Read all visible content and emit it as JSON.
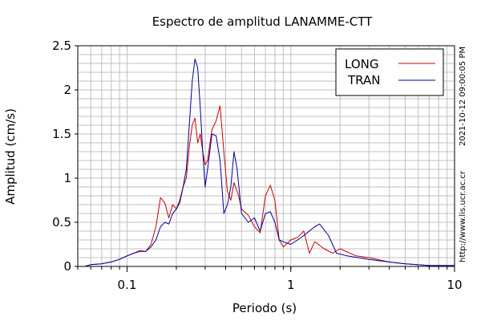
{
  "chart_data": {
    "type": "line",
    "title": "Espectro de amplitud LANAMME-CTT",
    "xlabel": "Periodo (s)",
    "ylabel": "Amplitud (cm/s)",
    "xscale": "log",
    "xlim": [
      0.05,
      10
    ],
    "ylim": [
      0,
      2.5
    ],
    "xticks": [
      {
        "value": 0.1,
        "label": "0.1"
      },
      {
        "value": 1,
        "label": "1"
      },
      {
        "value": 10,
        "label": "10"
      }
    ],
    "yticks": [
      {
        "value": 0,
        "label": "0"
      },
      {
        "value": 0.5,
        "label": "0.5"
      },
      {
        "value": 1,
        "label": "1"
      },
      {
        "value": 1.5,
        "label": "1.5"
      },
      {
        "value": 2,
        "label": "2"
      },
      {
        "value": 2.5,
        "label": "2.5"
      }
    ],
    "grid": true,
    "legend_position": "top-right",
    "side_annotations": [
      "2021-10-12 09:00:05 PM",
      "http://www.lis.ucr.ac.cr"
    ],
    "series": [
      {
        "name": "LONG",
        "color": "#cc0000",
        "points": [
          [
            0.055,
            0
          ],
          [
            0.06,
            0.02
          ],
          [
            0.07,
            0.03
          ],
          [
            0.08,
            0.05
          ],
          [
            0.09,
            0.08
          ],
          [
            0.1,
            0.12
          ],
          [
            0.11,
            0.15
          ],
          [
            0.12,
            0.18
          ],
          [
            0.13,
            0.17
          ],
          [
            0.14,
            0.25
          ],
          [
            0.15,
            0.45
          ],
          [
            0.16,
            0.78
          ],
          [
            0.17,
            0.72
          ],
          [
            0.18,
            0.55
          ],
          [
            0.19,
            0.7
          ],
          [
            0.2,
            0.65
          ],
          [
            0.21,
            0.72
          ],
          [
            0.22,
            0.9
          ],
          [
            0.23,
            1.0
          ],
          [
            0.24,
            1.35
          ],
          [
            0.25,
            1.6
          ],
          [
            0.26,
            1.68
          ],
          [
            0.27,
            1.4
          ],
          [
            0.28,
            1.5
          ],
          [
            0.29,
            1.3
          ],
          [
            0.3,
            1.15
          ],
          [
            0.31,
            1.2
          ],
          [
            0.33,
            1.55
          ],
          [
            0.35,
            1.65
          ],
          [
            0.37,
            1.82
          ],
          [
            0.39,
            1.3
          ],
          [
            0.41,
            0.85
          ],
          [
            0.43,
            0.75
          ],
          [
            0.45,
            0.95
          ],
          [
            0.48,
            0.8
          ],
          [
            0.5,
            0.65
          ],
          [
            0.55,
            0.58
          ],
          [
            0.6,
            0.45
          ],
          [
            0.65,
            0.38
          ],
          [
            0.7,
            0.8
          ],
          [
            0.75,
            0.92
          ],
          [
            0.8,
            0.75
          ],
          [
            0.85,
            0.3
          ],
          [
            0.9,
            0.22
          ],
          [
            1.0,
            0.3
          ],
          [
            1.1,
            0.33
          ],
          [
            1.2,
            0.4
          ],
          [
            1.3,
            0.15
          ],
          [
            1.4,
            0.28
          ],
          [
            1.6,
            0.2
          ],
          [
            1.8,
            0.15
          ],
          [
            2.0,
            0.2
          ],
          [
            2.5,
            0.12
          ],
          [
            3.0,
            0.1
          ],
          [
            4.0,
            0.05
          ],
          [
            5.0,
            0.03
          ],
          [
            7.0,
            0.01
          ],
          [
            10.0,
            0.01
          ]
        ]
      },
      {
        "name": "TRAN",
        "color": "#000099",
        "points": [
          [
            0.055,
            0
          ],
          [
            0.06,
            0.02
          ],
          [
            0.07,
            0.03
          ],
          [
            0.08,
            0.05
          ],
          [
            0.09,
            0.08
          ],
          [
            0.1,
            0.12
          ],
          [
            0.11,
            0.15
          ],
          [
            0.12,
            0.17
          ],
          [
            0.13,
            0.17
          ],
          [
            0.14,
            0.22
          ],
          [
            0.15,
            0.3
          ],
          [
            0.16,
            0.45
          ],
          [
            0.17,
            0.5
          ],
          [
            0.18,
            0.48
          ],
          [
            0.19,
            0.6
          ],
          [
            0.2,
            0.65
          ],
          [
            0.21,
            0.75
          ],
          [
            0.22,
            0.9
          ],
          [
            0.23,
            1.1
          ],
          [
            0.24,
            1.6
          ],
          [
            0.25,
            2.1
          ],
          [
            0.26,
            2.35
          ],
          [
            0.27,
            2.25
          ],
          [
            0.28,
            1.8
          ],
          [
            0.29,
            1.3
          ],
          [
            0.3,
            0.9
          ],
          [
            0.31,
            1.1
          ],
          [
            0.33,
            1.5
          ],
          [
            0.35,
            1.48
          ],
          [
            0.37,
            1.2
          ],
          [
            0.39,
            0.6
          ],
          [
            0.41,
            0.7
          ],
          [
            0.43,
            0.9
          ],
          [
            0.45,
            1.3
          ],
          [
            0.47,
            1.1
          ],
          [
            0.5,
            0.6
          ],
          [
            0.55,
            0.5
          ],
          [
            0.6,
            0.55
          ],
          [
            0.65,
            0.4
          ],
          [
            0.7,
            0.6
          ],
          [
            0.75,
            0.62
          ],
          [
            0.8,
            0.5
          ],
          [
            0.85,
            0.3
          ],
          [
            0.9,
            0.28
          ],
          [
            1.0,
            0.25
          ],
          [
            1.1,
            0.3
          ],
          [
            1.2,
            0.35
          ],
          [
            1.4,
            0.45
          ],
          [
            1.5,
            0.48
          ],
          [
            1.7,
            0.35
          ],
          [
            1.9,
            0.15
          ],
          [
            2.2,
            0.12
          ],
          [
            3.0,
            0.08
          ],
          [
            4.0,
            0.05
          ],
          [
            5.0,
            0.03
          ],
          [
            7.0,
            0.01
          ],
          [
            10.0,
            0.01
          ]
        ]
      }
    ]
  }
}
